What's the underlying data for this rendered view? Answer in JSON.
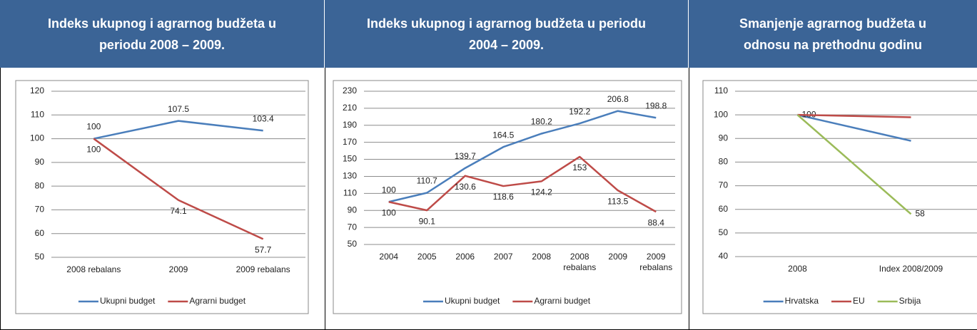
{
  "chart_data": [
    {
      "type": "line",
      "title": "Indeks ukupnog i agrarnog budžeta u periodu 2008 – 2009.",
      "categories": [
        "2008 rebalans",
        "2009",
        "2009 rebalans"
      ],
      "series": [
        {
          "name": "Ukupni budget",
          "color": "#4a7ebb",
          "values": [
            100,
            107.5,
            103.4
          ],
          "show_labels": [
            true,
            true,
            true
          ],
          "label_position": "above"
        },
        {
          "name": "Agrarni budget",
          "color": "#be4b48",
          "values": [
            100,
            74.1,
            57.7
          ],
          "show_labels": [
            true,
            true,
            true
          ],
          "label_position": "below"
        }
      ],
      "ylim": [
        50,
        120
      ],
      "yticks": [
        50,
        60,
        70,
        80,
        90,
        100,
        110,
        120
      ],
      "grid": true,
      "legend": "bottom"
    },
    {
      "type": "line",
      "title": "Indeks ukupnog i agrarnog budžeta u periodu 2004 – 2009.",
      "categories": [
        "2004",
        "2005",
        "2006",
        "2007",
        "2008",
        "2008 rebalans",
        "2009",
        "2009 rebalans"
      ],
      "series": [
        {
          "name": "Ukupni budget",
          "color": "#4a7ebb",
          "values": [
            100,
            110.7,
            139.7,
            164.5,
            180.2,
            192.2,
            206.8,
            198.8
          ],
          "show_labels": [
            true,
            true,
            true,
            true,
            true,
            true,
            true,
            true
          ],
          "label_position": "above"
        },
        {
          "name": "Agrarni budget",
          "color": "#be4b48",
          "values": [
            100,
            90.1,
            130.6,
            118.6,
            124.2,
            153,
            113.5,
            88.4
          ],
          "show_labels": [
            true,
            true,
            true,
            true,
            true,
            true,
            true,
            true
          ],
          "label_position": "below"
        }
      ],
      "ylim": [
        50,
        230
      ],
      "yticks": [
        50,
        70,
        90,
        110,
        130,
        150,
        170,
        190,
        210,
        230
      ],
      "grid": true,
      "legend": "bottom"
    },
    {
      "type": "line",
      "title": "Smanjenje agrarnog budžeta u odnosu na prethodnu godinu",
      "categories": [
        "2008",
        "Index 2008/2009"
      ],
      "series": [
        {
          "name": "Hrvatska",
          "color": "#4a7ebb",
          "values": [
            100,
            89
          ],
          "show_labels": [
            true,
            false
          ],
          "label_position": "right",
          "label_color": "#222222"
        },
        {
          "name": "EU",
          "color": "#be4b48",
          "values": [
            100,
            99
          ],
          "show_labels": [
            false,
            false
          ],
          "label_position": "right"
        },
        {
          "name": "Srbija",
          "color": "#9bbb59",
          "values": [
            100,
            58
          ],
          "show_labels": [
            false,
            true
          ],
          "label_position": "right",
          "label_color": "#222222"
        }
      ],
      "ylim": [
        40,
        110
      ],
      "yticks": [
        40,
        50,
        60,
        70,
        80,
        90,
        100,
        110
      ],
      "grid": true,
      "legend": "bottom"
    }
  ]
}
